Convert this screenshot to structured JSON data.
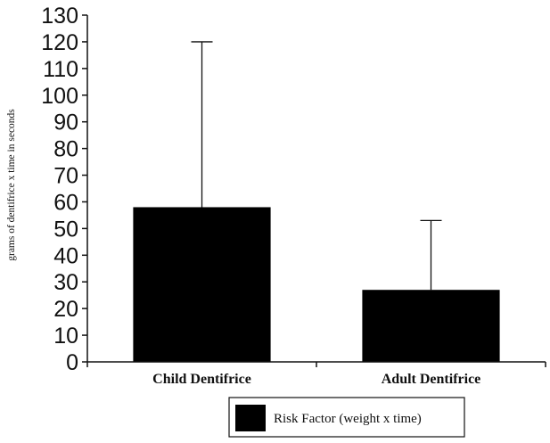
{
  "chart_data": {
    "type": "bar",
    "categories": [
      "Child Dentifrice",
      "Adult Dentifrice"
    ],
    "series": [
      {
        "name": "Risk Factor (weight x time)",
        "values": [
          58,
          27
        ],
        "error_upper": [
          120,
          53
        ],
        "color": "#000000"
      }
    ],
    "xlabel": "",
    "ylabel": "grams of dentifrice x time in seconds",
    "ylim": [
      0,
      130
    ],
    "yticks": [
      0,
      10,
      20,
      30,
      40,
      50,
      60,
      70,
      80,
      90,
      100,
      110,
      120,
      130
    ],
    "grid": false,
    "legend_position": "bottom-center"
  }
}
